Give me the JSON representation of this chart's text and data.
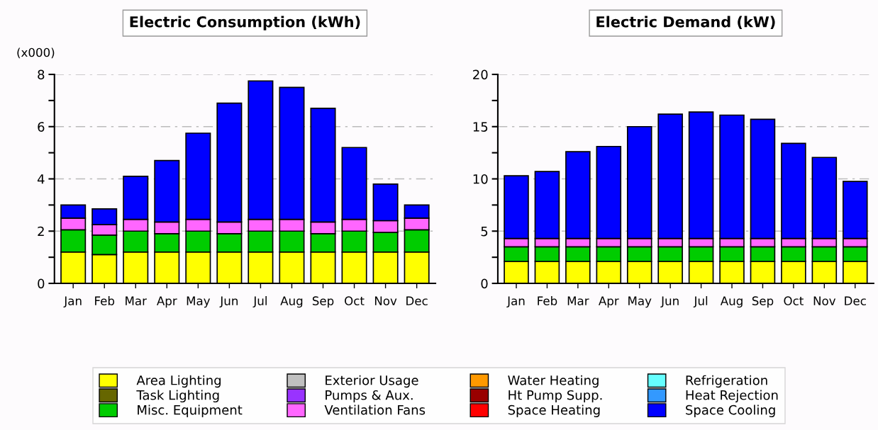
{
  "chart_data": [
    {
      "type": "bar",
      "stacked": true,
      "title": "Electric Consumption (kWh)",
      "ylabel": "(x000)",
      "categories": [
        "Jan",
        "Feb",
        "Mar",
        "Apr",
        "May",
        "Jun",
        "Jul",
        "Aug",
        "Sep",
        "Oct",
        "Nov",
        "Dec"
      ],
      "ylim": [
        0,
        8
      ],
      "yticks": [
        0,
        {
          "value": 1,
          "label": null
        },
        2,
        {
          "value": 3,
          "label": null
        },
        4,
        {
          "value": 5,
          "label": null
        },
        6,
        {
          "value": 7,
          "label": null
        },
        8
      ],
      "grid": "y",
      "legend": "bottom",
      "series": [
        {
          "name": "Area Lighting",
          "color": "#ffff00",
          "values": [
            1.2,
            1.1,
            1.2,
            1.2,
            1.2,
            1.2,
            1.2,
            1.2,
            1.2,
            1.2,
            1.2,
            1.2
          ]
        },
        {
          "name": "Task Lighting",
          "color": "#666600",
          "values": [
            0,
            0,
            0,
            0,
            0,
            0,
            0,
            0,
            0,
            0,
            0,
            0
          ]
        },
        {
          "name": "Misc. Equipment",
          "color": "#00cc00",
          "values": [
            0.85,
            0.75,
            0.8,
            0.7,
            0.8,
            0.7,
            0.8,
            0.8,
            0.7,
            0.8,
            0.75,
            0.85
          ]
        },
        {
          "name": "Exterior Usage",
          "color": "#c0c0c0",
          "values": [
            0,
            0,
            0,
            0,
            0,
            0,
            0,
            0,
            0,
            0,
            0,
            0
          ]
        },
        {
          "name": "Pumps & Aux.",
          "color": "#9933ff",
          "values": [
            0,
            0,
            0,
            0,
            0,
            0,
            0,
            0,
            0,
            0,
            0,
            0
          ]
        },
        {
          "name": "Ventilation Fans",
          "color": "#ff66ff",
          "values": [
            0.45,
            0.4,
            0.45,
            0.45,
            0.45,
            0.45,
            0.45,
            0.45,
            0.45,
            0.45,
            0.45,
            0.45
          ]
        },
        {
          "name": "Water Heating",
          "color": "#ff9900",
          "values": [
            0,
            0,
            0,
            0,
            0,
            0,
            0,
            0,
            0,
            0,
            0,
            0
          ]
        },
        {
          "name": "Ht Pump Supp.",
          "color": "#990000",
          "values": [
            0,
            0,
            0,
            0,
            0,
            0,
            0,
            0,
            0,
            0,
            0,
            0
          ]
        },
        {
          "name": "Space Heating",
          "color": "#ff0000",
          "values": [
            0,
            0,
            0,
            0,
            0,
            0,
            0,
            0,
            0,
            0,
            0,
            0
          ]
        },
        {
          "name": "Refrigeration",
          "color": "#66ffff",
          "values": [
            0,
            0,
            0,
            0,
            0,
            0,
            0,
            0,
            0,
            0,
            0,
            0
          ]
        },
        {
          "name": "Heat Rejection",
          "color": "#3399ff",
          "values": [
            0,
            0,
            0,
            0,
            0,
            0,
            0,
            0,
            0,
            0,
            0,
            0
          ]
        },
        {
          "name": "Space Cooling",
          "color": "#0000ff",
          "values": [
            0.5,
            0.6,
            1.65,
            2.35,
            3.3,
            4.55,
            5.3,
            5.05,
            4.35,
            2.75,
            1.4,
            0.5
          ]
        }
      ]
    },
    {
      "type": "bar",
      "stacked": true,
      "title": "Electric Demand (kW)",
      "categories": [
        "Jan",
        "Feb",
        "Mar",
        "Apr",
        "May",
        "Jun",
        "Jul",
        "Aug",
        "Sep",
        "Oct",
        "Nov",
        "Dec"
      ],
      "ylim": [
        0,
        20
      ],
      "yticks": [
        0,
        {
          "value": 2.5,
          "label": null
        },
        5,
        {
          "value": 7.5,
          "label": null
        },
        10,
        {
          "value": 12.5,
          "label": null
        },
        15,
        {
          "value": 17.5,
          "label": null
        },
        20
      ],
      "grid": "y",
      "series": [
        {
          "color": "#ffff00",
          "values": [
            2.1,
            2.1,
            2.1,
            2.1,
            2.1,
            2.1,
            2.1,
            2.1,
            2.1,
            2.1,
            2.1,
            2.1
          ]
        },
        {
          "color": "#666600",
          "values": [
            0,
            0,
            0,
            0,
            0,
            0,
            0,
            0,
            0,
            0,
            0,
            0
          ]
        },
        {
          "color": "#00cc00",
          "values": [
            1.4,
            1.4,
            1.4,
            1.4,
            1.4,
            1.4,
            1.4,
            1.4,
            1.4,
            1.4,
            1.4,
            1.4
          ]
        },
        {
          "color": "#c0c0c0",
          "values": [
            0,
            0,
            0,
            0,
            0,
            0,
            0,
            0,
            0,
            0,
            0,
            0
          ]
        },
        {
          "color": "#9933ff",
          "values": [
            0,
            0,
            0,
            0,
            0,
            0,
            0,
            0,
            0,
            0,
            0,
            0
          ]
        },
        {
          "color": "#ff66ff",
          "values": [
            0.8,
            0.8,
            0.8,
            0.8,
            0.8,
            0.8,
            0.8,
            0.8,
            0.8,
            0.8,
            0.8,
            0.8
          ]
        },
        {
          "color": "#ff9900",
          "values": [
            0,
            0,
            0,
            0,
            0,
            0,
            0,
            0,
            0,
            0,
            0,
            0
          ]
        },
        {
          "color": "#990000",
          "values": [
            0,
            0,
            0,
            0,
            0,
            0,
            0,
            0,
            0,
            0,
            0,
            0
          ]
        },
        {
          "color": "#ff0000",
          "values": [
            0,
            0,
            0,
            0,
            0,
            0,
            0,
            0,
            0,
            0,
            0,
            0
          ]
        },
        {
          "color": "#66ffff",
          "values": [
            0,
            0,
            0,
            0,
            0,
            0,
            0,
            0,
            0,
            0,
            0,
            0
          ]
        },
        {
          "color": "#3399ff",
          "values": [
            0,
            0,
            0,
            0,
            0,
            0,
            0,
            0,
            0,
            0,
            0,
            0
          ]
        },
        {
          "color": "#0000ff",
          "values": [
            6.0,
            6.4,
            8.3,
            8.8,
            10.7,
            11.9,
            12.1,
            11.8,
            11.4,
            9.1,
            7.75,
            5.45
          ]
        }
      ]
    }
  ]
}
